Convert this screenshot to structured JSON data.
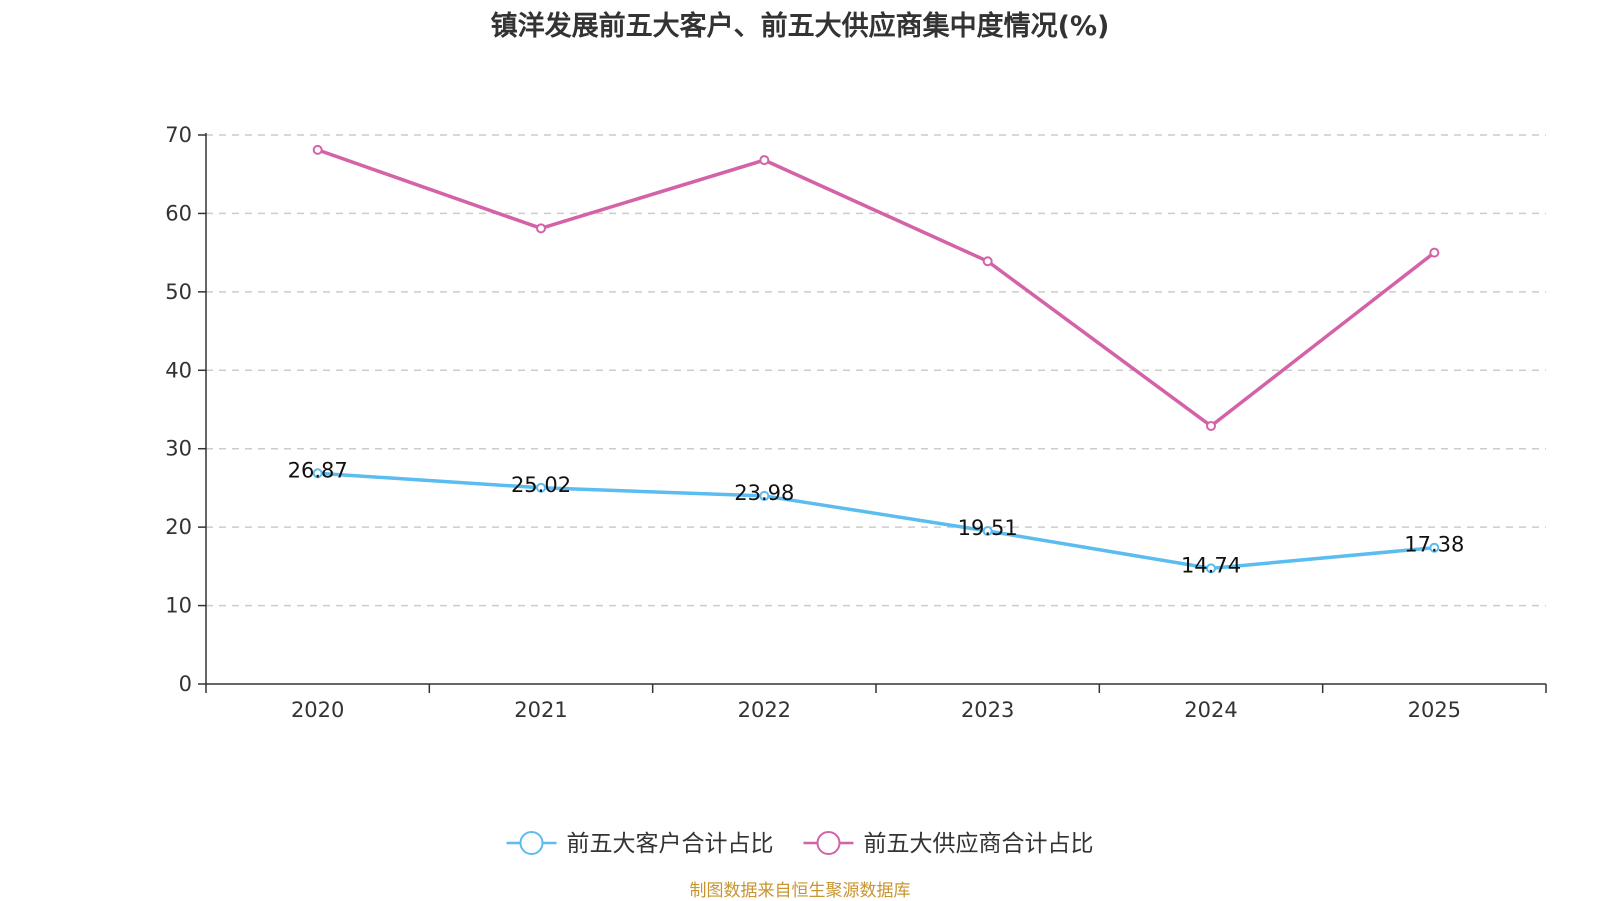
{
  "chart_data": {
    "type": "line",
    "title": "镇洋发展前五大客户、前五大供应商集中度情况(%)",
    "categories": [
      "2020",
      "2021",
      "2022",
      "2023",
      "2024",
      "2025"
    ],
    "ylim": [
      0,
      70
    ],
    "yticks": [
      0,
      10,
      20,
      30,
      40,
      50,
      60,
      70
    ],
    "grid": true,
    "legend_position": "bottom",
    "series": [
      {
        "name": "前五大客户合计占比",
        "color": "#5bbcf0",
        "values": [
          26.87,
          25.02,
          23.98,
          19.51,
          14.74,
          17.38
        ],
        "labels": [
          "26.87",
          "25.02",
          "23.98",
          "19.51",
          "14.74",
          "17.38"
        ]
      },
      {
        "name": "前五大供应商合计占比",
        "color": "#d462a8",
        "values": [
          68.1,
          58.1,
          66.8,
          53.9,
          32.9,
          55.0
        ]
      }
    ]
  },
  "source_note": "制图数据来自恒生聚源数据库"
}
